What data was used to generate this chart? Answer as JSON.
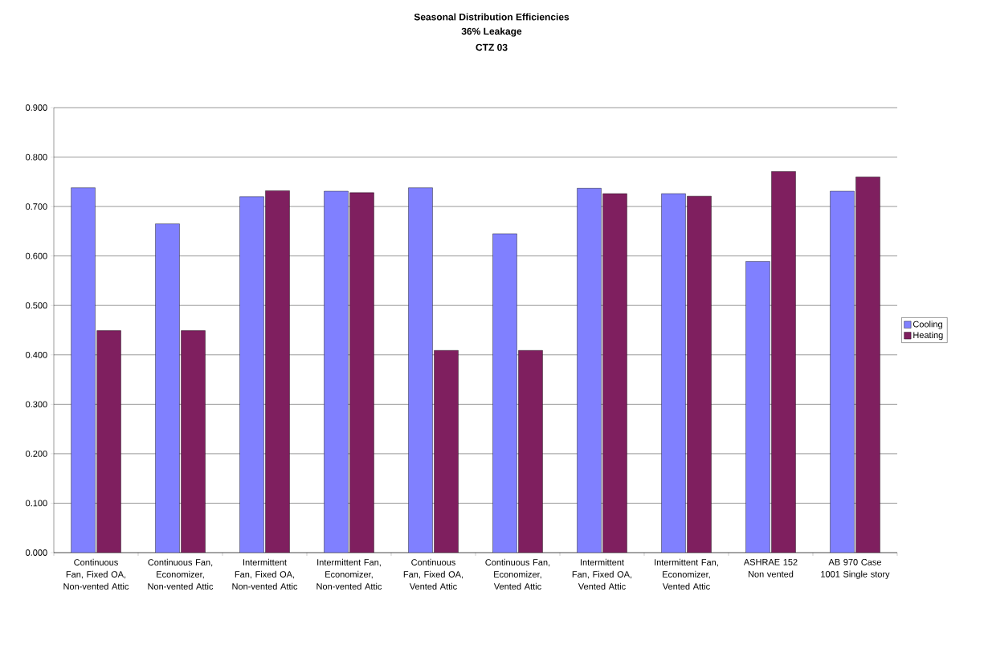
{
  "chart_data": {
    "type": "bar",
    "title": "Seasonal Distribution Efficiencies",
    "subtitle": "36% Leakage",
    "annotations": [
      "CTZ 03"
    ],
    "categories": [
      "Continuous Fan, Fixed OA, Non-vented Attic",
      "Continuous Fan, Economizer, Non-vented Attic",
      "Intermittent Fan, Fixed OA, Non-vented Attic",
      "Intermittent Fan, Economizer, Non-vented Attic",
      "Continuous Fan, Fixed OA, Vented Attic",
      "Continuous Fan, Economizer, Vented Attic",
      "Intermittent Fan, Fixed OA, Vented Attic",
      "Intermittent Fan, Economizer, Vented Attic",
      "ASHRAE 152 Non vented",
      "AB 970 Case 1001 Single story"
    ],
    "series": [
      {
        "name": "Cooling",
        "color": "#8080ff",
        "values": [
          0.738,
          0.665,
          0.72,
          0.731,
          0.738,
          0.645,
          0.737,
          0.726,
          0.589,
          0.731
        ]
      },
      {
        "name": "Heating",
        "color": "#7f1f5f",
        "values": [
          0.449,
          0.449,
          0.732,
          0.728,
          0.409,
          0.409,
          0.726,
          0.721,
          0.771,
          0.76
        ]
      }
    ],
    "ylim": [
      0,
      0.9
    ],
    "yticks": [
      {
        "value": 0,
        "label": "0.000"
      },
      {
        "value": 0.1,
        "label": "0.100"
      },
      {
        "value": 0.2,
        "label": "0.200"
      },
      {
        "value": 0.3,
        "label": "0.300"
      },
      {
        "value": 0.4,
        "label": "0.400"
      },
      {
        "value": 0.5,
        "label": "0.500"
      },
      {
        "value": 0.6,
        "label": "0.600"
      },
      {
        "value": 0.7,
        "label": "0.700"
      },
      {
        "value": 0.8,
        "label": "0.800"
      },
      {
        "value": 0.9,
        "label": "0.900"
      }
    ],
    "grid": "y",
    "legend": "right"
  }
}
